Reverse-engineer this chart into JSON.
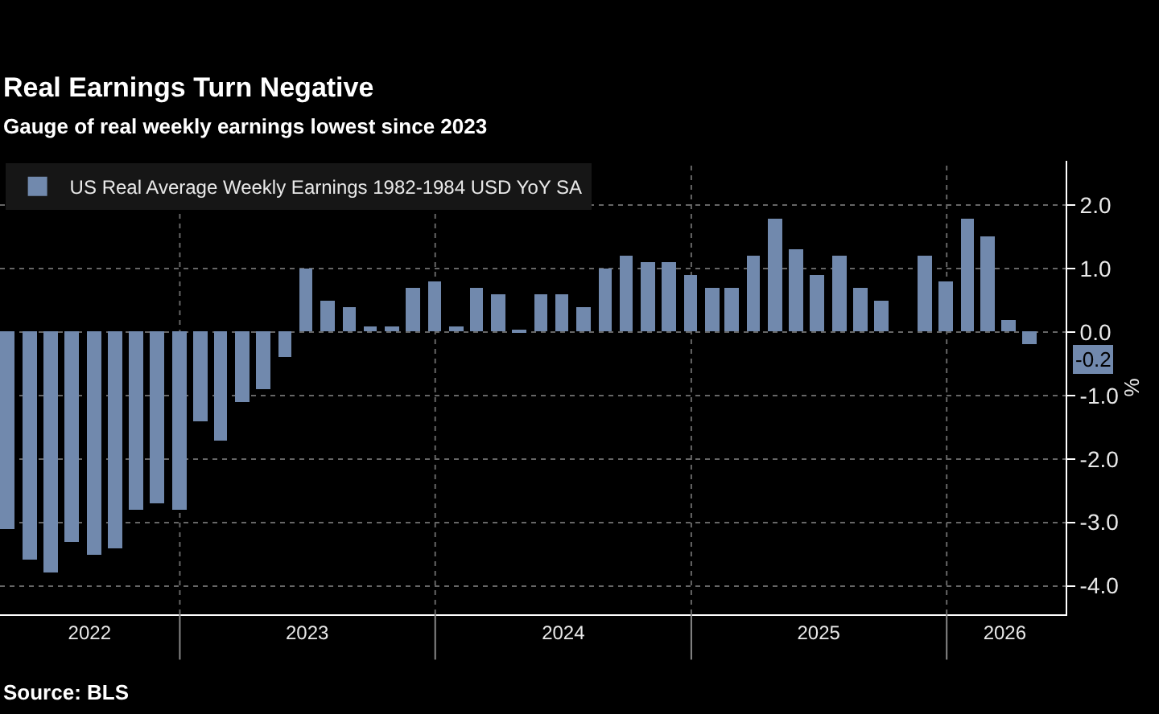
{
  "chart_data": {
    "type": "bar",
    "title": "Real Earnings Turn Negative",
    "subtitle": "Gauge of real weekly earnings lowest since 2023",
    "ylabel": "%",
    "x": [
      "2022-04-30",
      "2022-05-31",
      "2022-06-30",
      "2022-07-31",
      "2022-08-31",
      "2022-09-30",
      "2022-10-31",
      "2022-11-30",
      "2022-12-31",
      "2023-01-31",
      "2023-02-28",
      "2023-03-31",
      "2023-04-30",
      "2023-05-31",
      "2023-06-30",
      "2023-07-31",
      "2023-08-31",
      "2023-09-30",
      "2023-10-31",
      "2023-11-30",
      "2023-12-31",
      "2024-01-31",
      "2024-02-29",
      "2024-03-31",
      "2024-04-30",
      "2024-05-31",
      "2024-06-30",
      "2024-07-31",
      "2024-08-31",
      "2024-09-30",
      "2024-10-31",
      "2024-11-30",
      "2024-12-31",
      "2025-01-31",
      "2025-02-28",
      "2025-03-31",
      "2025-04-30",
      "2025-05-31",
      "2025-06-30",
      "2025-07-31",
      "2025-08-31",
      "2025-09-30",
      "2025-11-30",
      "2025-12-31",
      "2026-01-31",
      "2026-02-28",
      "2026-03-31",
      "2026-04-30"
    ],
    "series": [
      {
        "name": "US Real Average Weekly Earnings 1982-1984 USD YoY SA",
        "color": "#7189ad",
        "values": [
          -3.1,
          -3.6,
          -3.8,
          -3.3,
          -3.5,
          -3.4,
          -2.8,
          -2.7,
          -2.8,
          -1.4,
          -1.7,
          -1.1,
          -0.9,
          -0.4,
          1.0,
          0.5,
          0.4,
          0.1,
          0.1,
          0.7,
          0.8,
          0.1,
          0.7,
          0.6,
          0.03,
          0.6,
          0.6,
          0.4,
          1.0,
          1.2,
          1.1,
          1.1,
          0.9,
          0.7,
          0.7,
          1.2,
          1.8,
          1.3,
          0.9,
          1.2,
          0.7,
          0.5,
          1.2,
          0.8,
          1.8,
          1.5,
          0.2,
          -0.2
        ]
      }
    ],
    "xlim": [
      "2022-04-19",
      "2026-06-20"
    ],
    "xticks": [
      {
        "value": "2023-01-01",
        "label": null
      },
      {
        "value": "2024-01-01",
        "label": null
      },
      {
        "value": "2025-01-01",
        "label": null
      },
      {
        "value": "2026-01-01",
        "label": null
      },
      {
        "value": "2022-08-25",
        "label": "2022"
      },
      {
        "value": "2023-07-02",
        "label": "2023"
      },
      {
        "value": "2024-07-02",
        "label": "2024"
      },
      {
        "value": "2025-07-02",
        "label": "2025"
      },
      {
        "value": "2026-03-25",
        "label": "2026"
      }
    ],
    "ylim": [
      -4.45,
      2.7
    ],
    "yticks": [
      {
        "value": -4,
        "label": "-4.0"
      },
      {
        "value": -3,
        "label": "-3.0"
      },
      {
        "value": -2,
        "label": "-2.0"
      },
      {
        "value": -1,
        "label": "-1.0"
      },
      {
        "value": 0,
        "label": "0.0"
      },
      {
        "value": 1,
        "label": "1.0"
      },
      {
        "value": 2,
        "label": "2.0"
      }
    ],
    "grid": true,
    "legend": "top left",
    "annotations": [
      "-0.2",
      "Source: BLS"
    ]
  }
}
